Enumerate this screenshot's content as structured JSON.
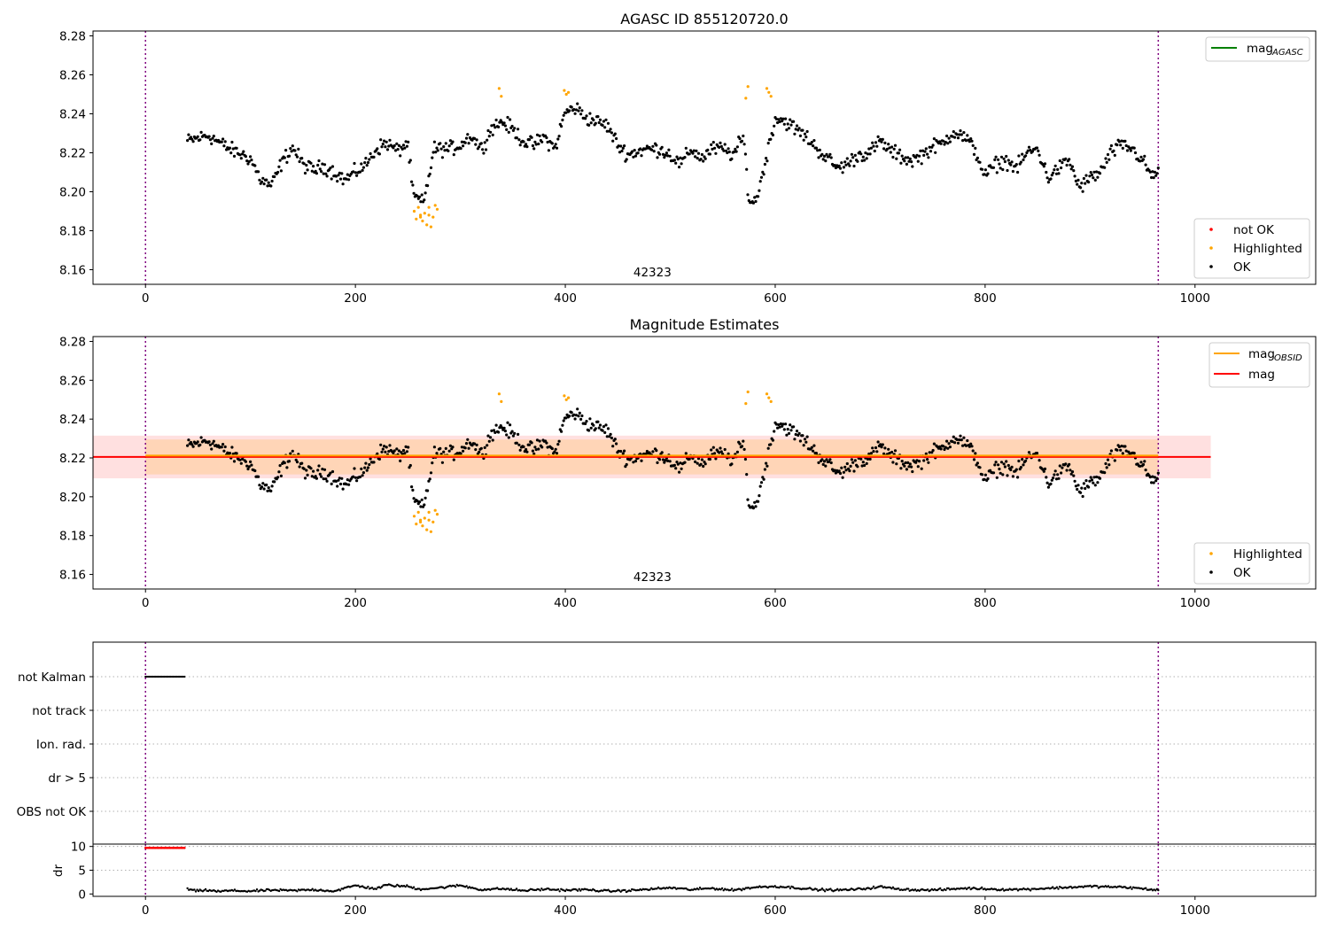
{
  "chart_data": [
    {
      "type": "scatter",
      "title": "AGASC ID 855120720.0",
      "annotation": "42323",
      "xlim": [
        -50,
        1115
      ],
      "ylim": [
        8.1525,
        8.2825
      ],
      "xticks": [
        0,
        200,
        400,
        600,
        800,
        1000
      ],
      "yticks": [
        8.16,
        8.18,
        8.2,
        8.22,
        8.24,
        8.26,
        8.28
      ],
      "vlines": [
        0,
        965
      ],
      "lines": [
        {
          "name": "mag",
          "subscript": "AGASC",
          "color": "#008000"
        }
      ],
      "legend_points": [
        {
          "name": "not OK",
          "color": "#ff0000"
        },
        {
          "name": "Highlighted",
          "color": "#ffa500"
        },
        {
          "name": "OK",
          "color": "#000000"
        }
      ],
      "series": [
        {
          "name": "OK",
          "color": "#000000",
          "approx_count": 850,
          "x_range": [
            40,
            965
          ],
          "profile": [
            [
              40,
              8.226
            ],
            [
              60,
              8.229
            ],
            [
              80,
              8.222
            ],
            [
              100,
              8.217
            ],
            [
              110,
              8.206
            ],
            [
              120,
              8.203
            ],
            [
              130,
              8.215
            ],
            [
              140,
              8.223
            ],
            [
              150,
              8.214
            ],
            [
              160,
              8.211
            ],
            [
              170,
              8.213
            ],
            [
              180,
              8.21
            ],
            [
              190,
              8.206
            ],
            [
              200,
              8.21
            ],
            [
              210,
              8.214
            ],
            [
              220,
              8.222
            ],
            [
              230,
              8.225
            ],
            [
              240,
              8.221
            ],
            [
              250,
              8.225
            ],
            [
              255,
              8.198
            ],
            [
              265,
              8.194
            ],
            [
              275,
              8.222
            ],
            [
              290,
              8.222
            ],
            [
              300,
              8.224
            ],
            [
              310,
              8.229
            ],
            [
              320,
              8.222
            ],
            [
              330,
              8.233
            ],
            [
              340,
              8.236
            ],
            [
              350,
              8.232
            ],
            [
              360,
              8.226
            ],
            [
              370,
              8.224
            ],
            [
              380,
              8.228
            ],
            [
              390,
              8.222
            ],
            [
              400,
              8.241
            ],
            [
              410,
              8.243
            ],
            [
              420,
              8.238
            ],
            [
              430,
              8.236
            ],
            [
              440,
              8.234
            ],
            [
              450,
              8.224
            ],
            [
              460,
              8.219
            ],
            [
              470,
              8.221
            ],
            [
              480,
              8.222
            ],
            [
              490,
              8.222
            ],
            [
              500,
              8.219
            ],
            [
              510,
              8.214
            ],
            [
              520,
              8.222
            ],
            [
              530,
              8.217
            ],
            [
              540,
              8.222
            ],
            [
              550,
              8.222
            ],
            [
              560,
              8.219
            ],
            [
              570,
              8.228
            ],
            [
              575,
              8.196
            ],
            [
              580,
              8.194
            ],
            [
              585,
              8.202
            ],
            [
              590,
              8.214
            ],
            [
              600,
              8.238
            ],
            [
              610,
              8.236
            ],
            [
              620,
              8.232
            ],
            [
              630,
              8.228
            ],
            [
              640,
              8.222
            ],
            [
              650,
              8.217
            ],
            [
              660,
              8.212
            ],
            [
              670,
              8.215
            ],
            [
              680,
              8.219
            ],
            [
              690,
              8.22
            ],
            [
              700,
              8.226
            ],
            [
              710,
              8.221
            ],
            [
              720,
              8.218
            ],
            [
              730,
              8.216
            ],
            [
              740,
              8.219
            ],
            [
              750,
              8.223
            ],
            [
              760,
              8.225
            ],
            [
              770,
              8.231
            ],
            [
              780,
              8.228
            ],
            [
              790,
              8.222
            ],
            [
              800,
              8.208
            ],
            [
              810,
              8.214
            ],
            [
              820,
              8.216
            ],
            [
              830,
              8.212
            ],
            [
              840,
              8.22
            ],
            [
              850,
              8.222
            ],
            [
              860,
              8.207
            ],
            [
              870,
              8.212
            ],
            [
              880,
              8.216
            ],
            [
              890,
              8.202
            ],
            [
              900,
              8.207
            ],
            [
              910,
              8.21
            ],
            [
              920,
              8.22
            ],
            [
              930,
              8.224
            ],
            [
              940,
              8.222
            ],
            [
              950,
              8.216
            ],
            [
              960,
              8.207
            ],
            [
              965,
              8.212
            ]
          ]
        },
        {
          "name": "Highlighted",
          "color": "#ffa500",
          "points": [
            [
              256,
              8.19
            ],
            [
              258,
              8.186
            ],
            [
              260,
              8.192
            ],
            [
              262,
              8.188
            ],
            [
              264,
              8.185
            ],
            [
              266,
              8.189
            ],
            [
              268,
              8.183
            ],
            [
              270,
              8.188
            ],
            [
              272,
              8.182
            ],
            [
              274,
              8.187
            ],
            [
              276,
              8.193
            ],
            [
              278,
              8.191
            ],
            [
              270,
              8.192
            ],
            [
              262,
              8.187
            ],
            [
              337,
              8.253
            ],
            [
              339,
              8.249
            ],
            [
              399,
              8.252
            ],
            [
              401,
              8.25
            ],
            [
              403,
              8.251
            ],
            [
              572,
              8.248
            ],
            [
              574,
              8.254
            ],
            [
              592,
              8.253
            ],
            [
              594,
              8.251
            ],
            [
              596,
              8.249
            ]
          ]
        }
      ]
    },
    {
      "type": "scatter",
      "title": "Magnitude Estimates",
      "annotation": "42323",
      "xlim": [
        -50,
        1115
      ],
      "ylim": [
        8.1525,
        8.2825
      ],
      "xticks": [
        0,
        200,
        400,
        600,
        800,
        1000
      ],
      "yticks": [
        8.16,
        8.18,
        8.2,
        8.22,
        8.24,
        8.26,
        8.28
      ],
      "vlines": [
        0,
        965
      ],
      "mag": 8.2205,
      "mag_band": [
        8.2095,
        8.2315
      ],
      "mag_obsid": 8.2205,
      "mag_obsid_band": [
        8.2115,
        8.2295
      ],
      "band_x": [
        -50,
        1015
      ],
      "obsid_x": [
        0,
        965
      ],
      "lines": [
        {
          "name": "mag",
          "subscript": "OBSID",
          "color": "#ffa500"
        },
        {
          "name": "mag",
          "color": "#ff0000"
        }
      ],
      "legend_points": [
        {
          "name": "Highlighted",
          "color": "#ffa500"
        },
        {
          "name": "OK",
          "color": "#000000"
        }
      ]
    },
    {
      "type": "scatter",
      "category_labels": [
        "not Kalman",
        "not track",
        "Ion. rad.",
        "dr > 5",
        "OBS not OK"
      ],
      "flag_ranges": [
        {
          "category": "not Kalman",
          "x": [
            0,
            38
          ],
          "color": "#000000"
        }
      ],
      "xlim": [
        -50,
        1115
      ],
      "xticks": [
        0,
        200,
        400,
        600,
        800,
        1000
      ],
      "vlines": [
        0,
        965
      ],
      "dr": {
        "ylabel": "dr",
        "ylim": [
          -0.5,
          10.5
        ],
        "yticks": [
          0,
          5,
          10
        ],
        "clipped": {
          "x": [
            0,
            38
          ],
          "value": 9.7,
          "color": "#ff0000"
        },
        "profile": [
          [
            40,
            1.0
          ],
          [
            50,
            0.6
          ],
          [
            60,
            0.8
          ],
          [
            70,
            0.5
          ],
          [
            80,
            0.7
          ],
          [
            100,
            0.6
          ],
          [
            120,
            0.8
          ],
          [
            140,
            0.7
          ],
          [
            160,
            0.9
          ],
          [
            180,
            0.6
          ],
          [
            200,
            1.8
          ],
          [
            210,
            1.4
          ],
          [
            220,
            1.1
          ],
          [
            230,
            1.9
          ],
          [
            240,
            1.7
          ],
          [
            250,
            1.6
          ],
          [
            260,
            1.0
          ],
          [
            280,
            1.3
          ],
          [
            300,
            1.8
          ],
          [
            320,
            0.9
          ],
          [
            340,
            1.1
          ],
          [
            360,
            0.7
          ],
          [
            380,
            1.0
          ],
          [
            400,
            0.8
          ],
          [
            420,
            0.9
          ],
          [
            440,
            0.6
          ],
          [
            460,
            0.7
          ],
          [
            480,
            1.0
          ],
          [
            500,
            1.3
          ],
          [
            520,
            0.9
          ],
          [
            540,
            1.2
          ],
          [
            560,
            0.8
          ],
          [
            580,
            1.4
          ],
          [
            600,
            1.6
          ],
          [
            620,
            1.3
          ],
          [
            640,
            0.9
          ],
          [
            660,
            0.8
          ],
          [
            680,
            1.0
          ],
          [
            700,
            1.5
          ],
          [
            720,
            1.0
          ],
          [
            740,
            0.8
          ],
          [
            760,
            0.9
          ],
          [
            780,
            1.2
          ],
          [
            800,
            1.1
          ],
          [
            820,
            0.9
          ],
          [
            840,
            1.0
          ],
          [
            860,
            1.2
          ],
          [
            880,
            1.4
          ],
          [
            900,
            1.6
          ],
          [
            920,
            1.5
          ],
          [
            940,
            1.3
          ],
          [
            960,
            0.9
          ],
          [
            965,
            0.8
          ]
        ]
      }
    }
  ]
}
